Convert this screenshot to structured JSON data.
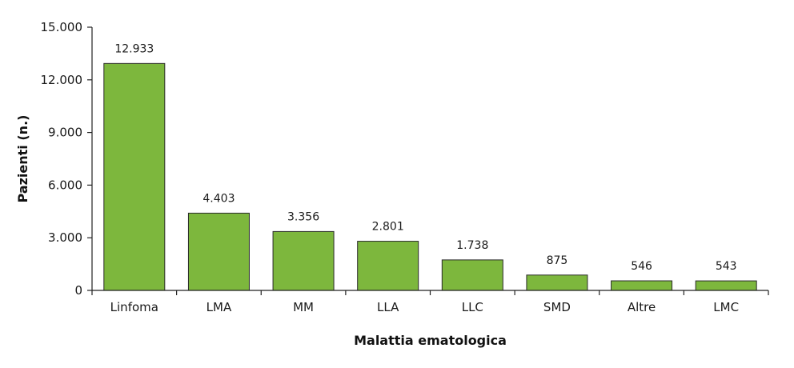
{
  "chart_data": {
    "type": "bar",
    "categories": [
      "Linfoma",
      "LMA",
      "MM",
      "LLA",
      "LLC",
      "SMD",
      "Altre",
      "LMC"
    ],
    "values": [
      12933,
      4403,
      3356,
      2801,
      1738,
      875,
      546,
      543
    ],
    "value_labels": [
      "12.933",
      "4.403",
      "3.356",
      "2.801",
      "1.738",
      "875",
      "546",
      "543"
    ],
    "yticks": [
      0,
      3000,
      6000,
      9000,
      12000,
      15000
    ],
    "ytick_labels": [
      "0",
      "3.000",
      "6.000",
      "9.000",
      "12.000",
      "15.000"
    ],
    "xlabel": "Malattia ematologica",
    "ylabel": "Pazienti (n.)",
    "ylim": [
      0,
      15000
    ],
    "grid": false,
    "bar_color": "#7db73d"
  }
}
